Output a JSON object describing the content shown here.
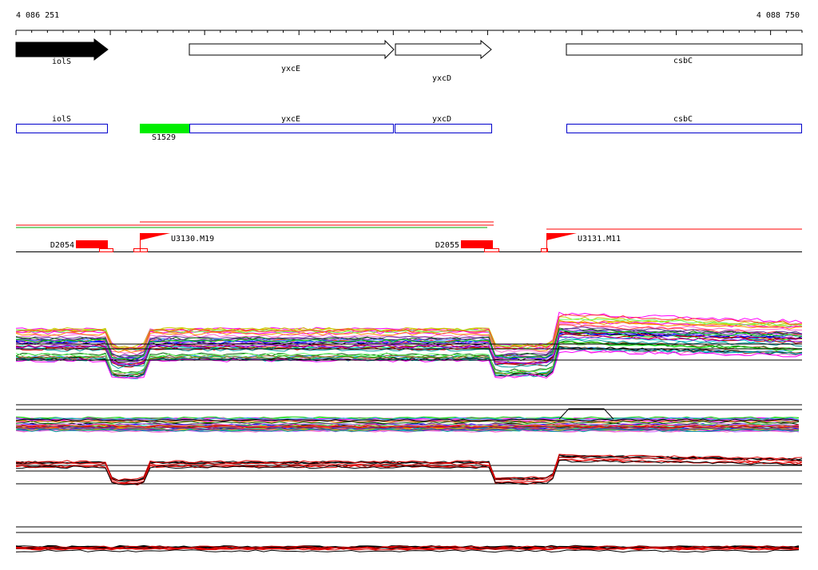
{
  "ruler": {
    "start_label": "4 086 251",
    "end_label": "4 088 750"
  },
  "genes": [
    {
      "name": "iolS",
      "strand": "+",
      "filled": true
    },
    {
      "name": "yxcE",
      "strand": "+",
      "filled": false
    },
    {
      "name": "yxcD",
      "strand": "+",
      "filled": false
    },
    {
      "name": "csbC",
      "strand": "+",
      "filled": false
    }
  ],
  "transcripts": [
    {
      "name": "iolS"
    },
    {
      "name": "S1529",
      "highlight": "#00ee00"
    },
    {
      "name": "yxcE"
    },
    {
      "name": "yxcD"
    },
    {
      "name": "csbC"
    }
  ],
  "features": {
    "terminators": [
      {
        "name": "D2054"
      },
      {
        "name": "D2055"
      }
    ],
    "promoters": [
      {
        "name": "U3130.M19"
      },
      {
        "name": "U3131.M11"
      }
    ]
  },
  "colors": {
    "gene_outline": "#000000",
    "transcript_outline": "#0000cc",
    "transcript_highlight": "#00ee00",
    "feature_red": "#ff0000",
    "track_red": "#e00000"
  }
}
